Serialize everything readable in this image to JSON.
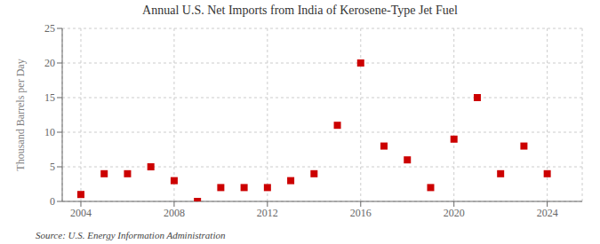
{
  "chart_data": {
    "type": "scatter",
    "title": "Annual U.S. Net Imports from India of Kerosene-Type Jet Fuel",
    "y_label": "Thousand Barrels per Day",
    "annotations": [
      "Source: U.S. Energy Information Administration"
    ],
    "x": [
      2004,
      2005,
      2006,
      2007,
      2008,
      2009,
      2010,
      2011,
      2012,
      2013,
      2014,
      2015,
      2016,
      2017,
      2018,
      2019,
      2020,
      2021,
      2022,
      2023,
      2024
    ],
    "values": [
      1,
      4,
      4,
      5,
      3,
      0,
      2,
      2,
      2,
      3,
      4,
      11,
      20,
      8,
      6,
      2,
      9,
      15,
      4,
      8,
      4
    ],
    "color": "#cc0000",
    "marker": "square",
    "xlim": [
      2003.2,
      2025.5
    ],
    "ylim": [
      0,
      25
    ],
    "xticks": [
      2004,
      2008,
      2012,
      2016,
      2020,
      2024
    ],
    "yticks": [
      0,
      5,
      10,
      15,
      20,
      25
    ],
    "grid": true
  }
}
